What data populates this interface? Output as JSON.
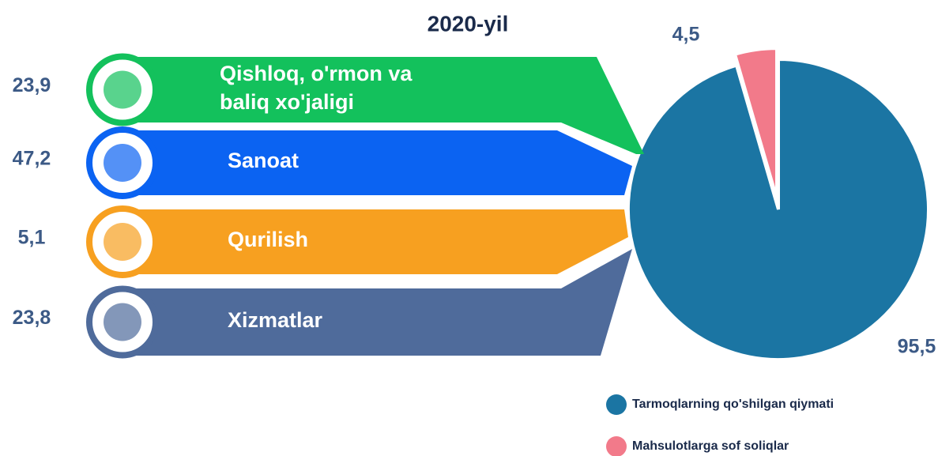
{
  "chart_data": [
    {
      "type": "pie",
      "title": "2020-yil",
      "categories": [
        "Tarmoqlarning qo'shilgan qiymati",
        "Mahsulotlarga sof soliqlar"
      ],
      "values": [
        95.5,
        4.5
      ],
      "value_labels": [
        "95,5",
        "4,5"
      ],
      "colors": [
        "#1b75a3",
        "#f27a8a"
      ]
    },
    {
      "type": "sectors",
      "categories": [
        "Qishloq, o'rmon va\nbaliq xo'jaligi",
        "Sanoat",
        "Qurilish",
        "Xizmatlar"
      ],
      "values": [
        23.9,
        47.2,
        5.1,
        23.8
      ],
      "value_labels": [
        "23,9",
        "47,2",
        "5,1",
        "23,8"
      ],
      "colors": [
        "#13c15c",
        "#0b63f2",
        "#f7a020",
        "#4f6b9b"
      ]
    }
  ]
}
